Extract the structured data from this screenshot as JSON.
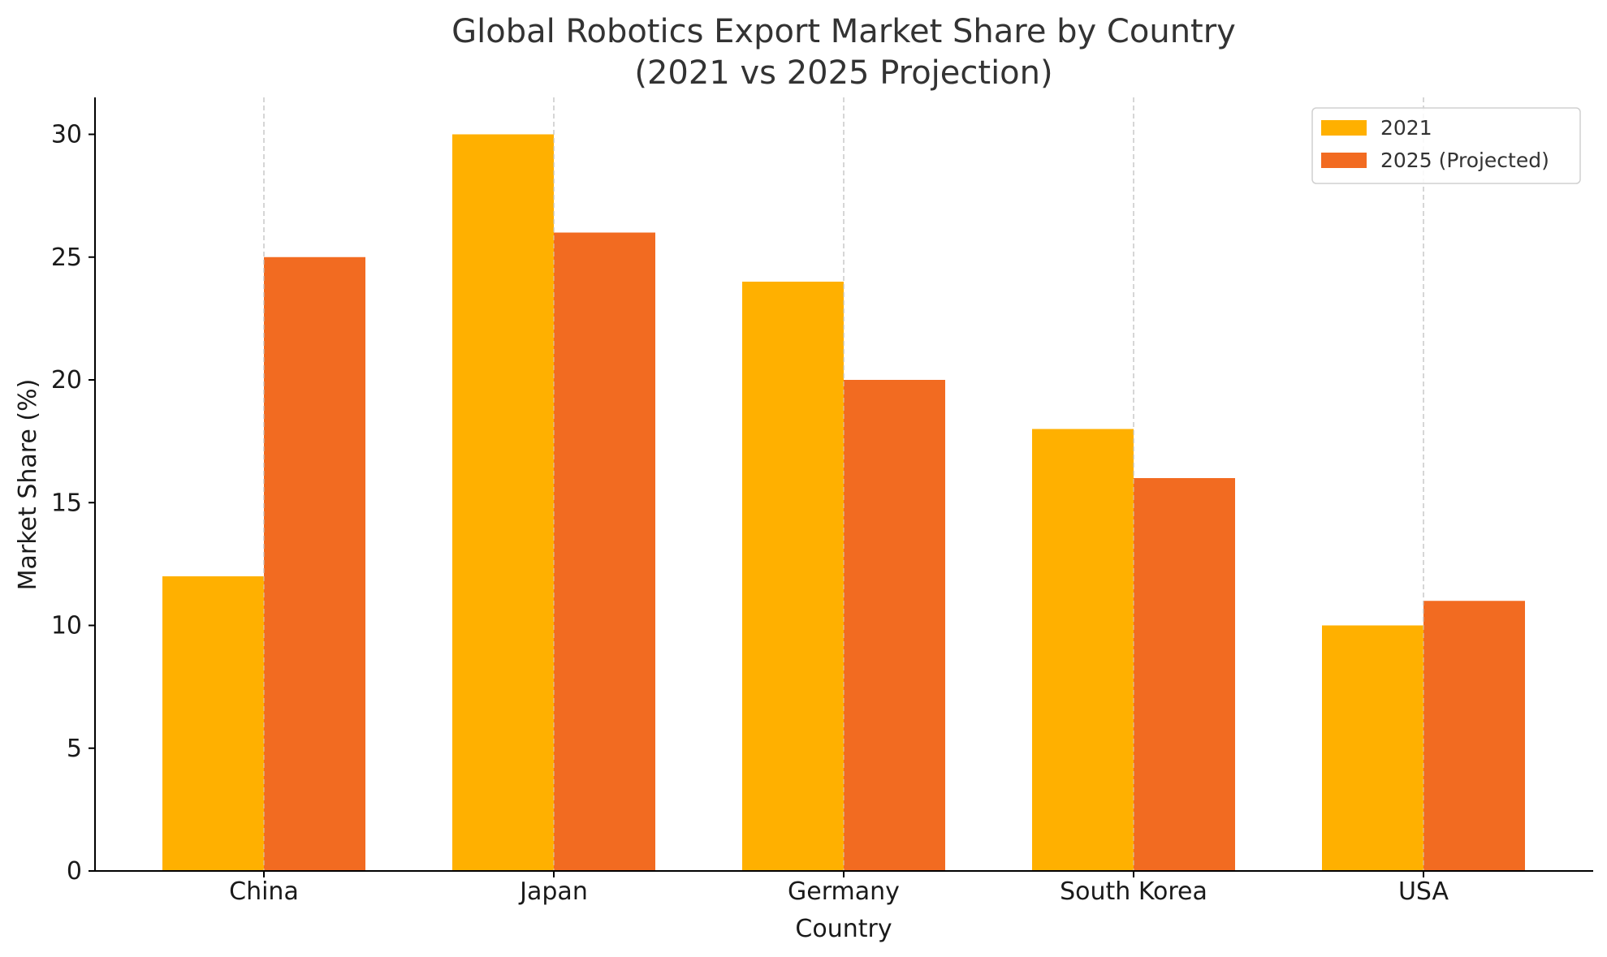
{
  "chart_data": {
    "type": "bar",
    "title": "Global Robotics Export Market Share by Country",
    "subtitle": "(2021 vs 2025 Projection)",
    "xlabel": "Country",
    "ylabel": "Market Share (%)",
    "categories": [
      "China",
      "Japan",
      "Germany",
      "South Korea",
      "USA"
    ],
    "series": [
      {
        "name": "2021",
        "color": "#FFB000",
        "values": [
          12,
          30,
          24,
          18,
          10
        ]
      },
      {
        "name": "2025 (Projected)",
        "color": "#F26B21",
        "values": [
          25,
          26,
          20,
          16,
          11
        ]
      }
    ],
    "ylim": [
      0,
      31.5
    ],
    "yticks": [
      0,
      5,
      10,
      15,
      20,
      25,
      30
    ],
    "grid": "x-dashed",
    "legend_position": "top-right"
  }
}
